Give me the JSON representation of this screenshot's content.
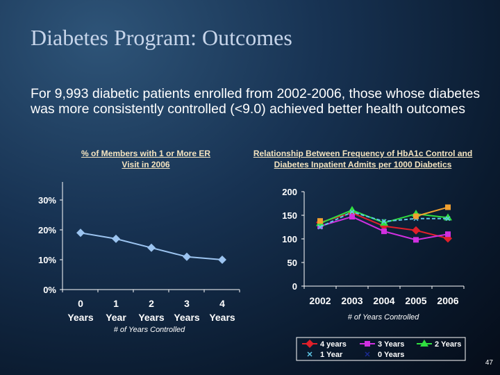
{
  "slide": {
    "title": "Diabetes Program: Outcomes",
    "body": "For 9,993 diabetic patients enrolled from 2002-2006, those whose diabetes was more consistently controlled (<9.0) achieved better health outcomes",
    "page_number": "47"
  },
  "chart_data": [
    {
      "type": "line",
      "title": "% of Members with 1 or More ER Visit in 2006",
      "categories": [
        "0 Years",
        "1 Year",
        "2 Years",
        "3 Years",
        "4 Years"
      ],
      "category_lines": [
        [
          "0",
          "Years"
        ],
        [
          "1",
          "Year"
        ],
        [
          "2",
          "Years"
        ],
        [
          "3",
          "Years"
        ],
        [
          "4",
          "Years"
        ]
      ],
      "values": [
        19,
        17,
        14,
        11,
        10
      ],
      "xlabel": "# of Years Controlled",
      "ylabel": "",
      "ylim": [
        0,
        30
      ],
      "yticks": [
        "0%",
        "10%",
        "20%",
        "30%"
      ],
      "color": "#9cc4f0",
      "grid": false
    },
    {
      "type": "line",
      "title": "Relationship Between Frequency of HbA1c Control and Diabetes Inpatient Admits per 1000 Diabetics",
      "categories": [
        "2002",
        "2003",
        "2004",
        "2005",
        "2006"
      ],
      "xlabel": "# of Years Controlled",
      "ylabel": "",
      "ylim": [
        0,
        200
      ],
      "yticks": [
        "0",
        "50",
        "100",
        "150",
        "200"
      ],
      "grid": false,
      "legend": "bottom",
      "series": [
        {
          "name": "4 years",
          "values": [
            135,
            155,
            127,
            118,
            101
          ],
          "color": "#e0202a",
          "marker": "diamond"
        },
        {
          "name": "3 Years",
          "values": [
            127,
            147,
            116,
            98,
            110
          ],
          "color": "#d030e0",
          "marker": "square"
        },
        {
          "name": "2 Years",
          "values": [
            133,
            161,
            134,
            153,
            145
          ],
          "color": "#30e040",
          "marker": "triangle"
        },
        {
          "name": "1 Year",
          "values": [
            125,
            157,
            137,
            143,
            143
          ],
          "color": "#60c8e8",
          "marker": "x"
        },
        {
          "name": "0 Years",
          "values": [
            138,
            null,
            null,
            148,
            167
          ],
          "color": "#f0a030",
          "marker": "square"
        }
      ]
    }
  ]
}
